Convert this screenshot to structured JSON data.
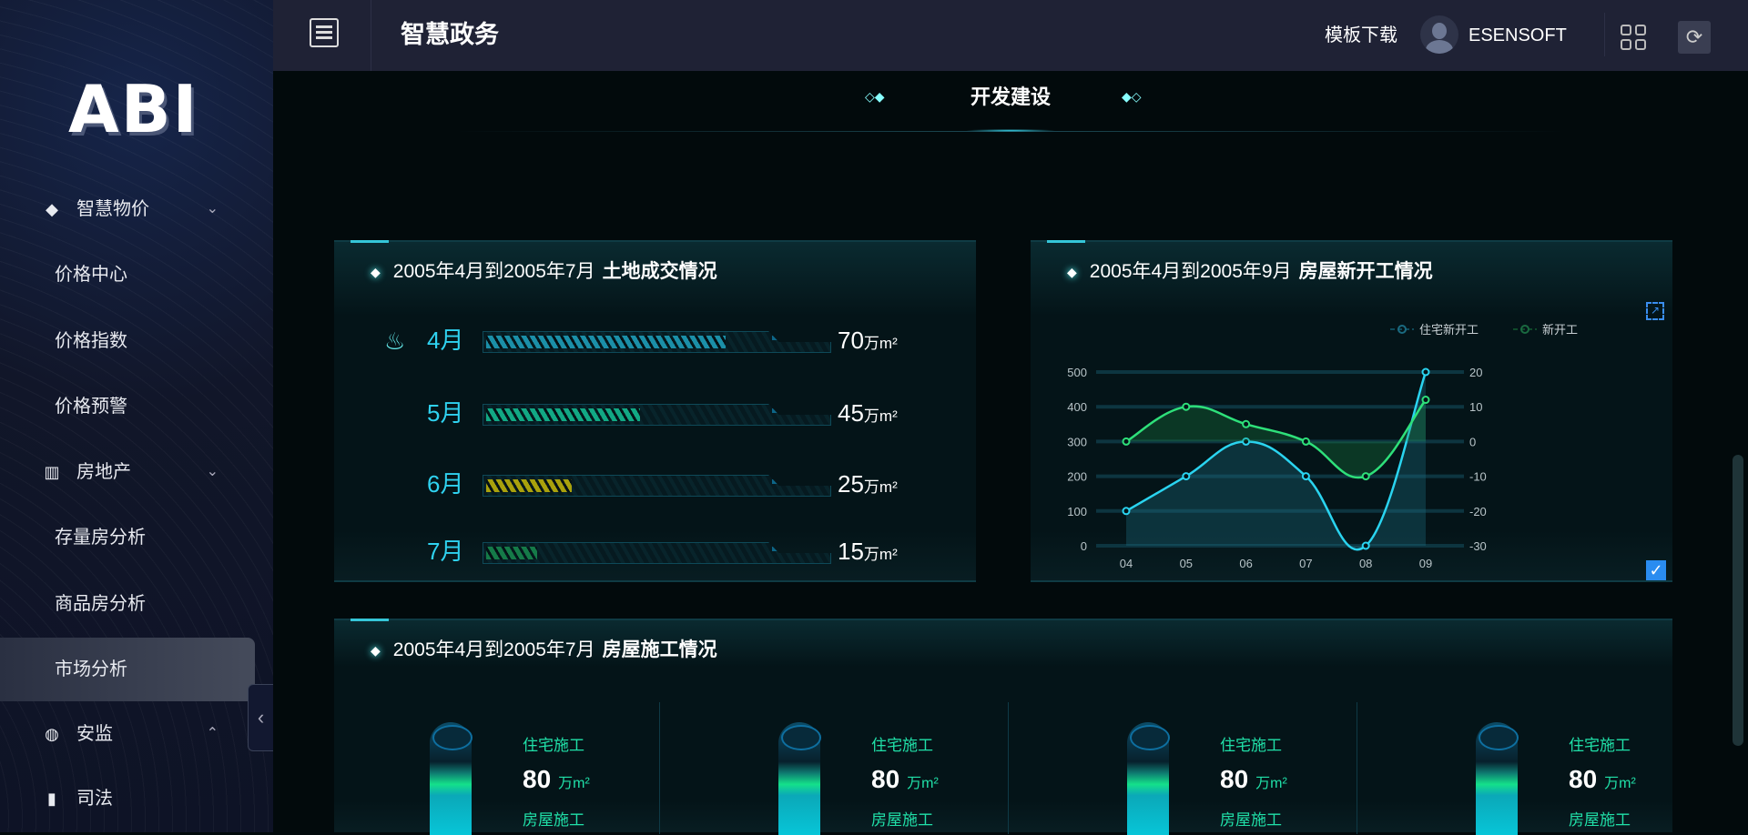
{
  "app": {
    "logo": "ABI",
    "title": "智慧政务",
    "template_download": "模板下载",
    "user": "ESENSOFT"
  },
  "sidebar": {
    "items": [
      {
        "label": "智慧物价",
        "type": "group",
        "icon": "diamond-icon",
        "expanded": true
      },
      {
        "label": "价格中心",
        "type": "sub"
      },
      {
        "label": "价格指数",
        "type": "sub"
      },
      {
        "label": "价格预警",
        "type": "sub"
      },
      {
        "label": "房地产",
        "type": "group",
        "icon": "building-icon",
        "expanded": true
      },
      {
        "label": "存量房分析",
        "type": "sub"
      },
      {
        "label": "商品房分析",
        "type": "sub"
      },
      {
        "label": "市场分析",
        "type": "sub",
        "active": true
      },
      {
        "label": "安监",
        "type": "group",
        "icon": "globe-icon",
        "expanded": false
      },
      {
        "label": "司法",
        "type": "group",
        "icon": "bar-chart-icon"
      }
    ]
  },
  "section": {
    "title": "开发建设"
  },
  "land": {
    "title_prefix": "2005年4月到2005年7月",
    "title_bold": "土地成交情况",
    "unit": "万m²",
    "rows": [
      {
        "month": "4月",
        "value": 70,
        "color": "#1b8fa8"
      },
      {
        "month": "5月",
        "value": 45,
        "color": "#12a884"
      },
      {
        "month": "6月",
        "value": 25,
        "color": "#a9a10c"
      },
      {
        "month": "7月",
        "value": 15,
        "color": "#157a48"
      }
    ],
    "max": 100
  },
  "housing_start": {
    "title_prefix": "2005年4月到2005年9月",
    "title_bold": "房屋新开工情况"
  },
  "chart_data": {
    "type": "line",
    "categories": [
      "04",
      "05",
      "06",
      "07",
      "08",
      "09"
    ],
    "series": [
      {
        "name": "住宅新开工",
        "axis": "left",
        "values": [
          100,
          200,
          300,
          200,
          0,
          500
        ],
        "color": "#2ad4f0",
        "area": true
      },
      {
        "name": "新开工",
        "axis": "right",
        "values": [
          0,
          10,
          5,
          0,
          -10,
          12
        ],
        "color": "#2ee07a",
        "area": true
      }
    ],
    "yleft": {
      "min": 0,
      "max": 500,
      "ticks": [
        0,
        100,
        200,
        300,
        400,
        500
      ]
    },
    "yright": {
      "min": -30,
      "max": 20,
      "ticks": [
        -30,
        -20,
        -10,
        0,
        10,
        20
      ]
    },
    "legend": "top-right",
    "grid": true
  },
  "construction": {
    "title_prefix": "2005年4月到2005年7月",
    "title_bold": "房屋施工情况",
    "items": [
      {
        "label1": "住宅施工",
        "value": 80,
        "unit": "万m²",
        "label2": "房屋施工"
      },
      {
        "label1": "住宅施工",
        "value": 80,
        "unit": "万m²",
        "label2": "房屋施工"
      },
      {
        "label1": "住宅施工",
        "value": 80,
        "unit": "万m²",
        "label2": "房屋施工"
      },
      {
        "label1": "住宅施工",
        "value": 80,
        "unit": "万m²",
        "label2": "房屋施工"
      }
    ]
  }
}
